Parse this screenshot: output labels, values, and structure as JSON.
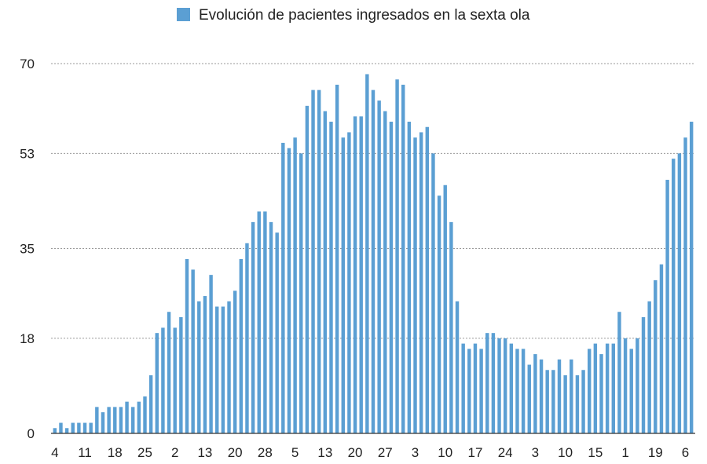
{
  "chart_data": {
    "type": "bar",
    "title": "",
    "xlabel": "",
    "ylabel": "",
    "ylim": [
      0,
      70
    ],
    "y_ticks": [
      0,
      18,
      35,
      53,
      70
    ],
    "grid": true,
    "legend_position": "top-center",
    "color": "#5b9fd3",
    "series": [
      {
        "name": "Evolución de pacientes ingresados en la sexta ola",
        "values": [
          1,
          2,
          1,
          2,
          2,
          2,
          2,
          5,
          4,
          5,
          5,
          5,
          6,
          5,
          6,
          7,
          11,
          19,
          20,
          23,
          20,
          22,
          33,
          31,
          25,
          26,
          30,
          24,
          24,
          25,
          27,
          33,
          36,
          40,
          42,
          42,
          40,
          38,
          55,
          54,
          56,
          53,
          62,
          65,
          65,
          61,
          59,
          66,
          56,
          57,
          60,
          60,
          68,
          65,
          63,
          61,
          59,
          67,
          66,
          59,
          56,
          57,
          58,
          53,
          45,
          47,
          40,
          25,
          17,
          16,
          17,
          16,
          19,
          19,
          18,
          18,
          17,
          16,
          16,
          13,
          15,
          14,
          12,
          12,
          14,
          11,
          14,
          11,
          12,
          16,
          17,
          15,
          17,
          17,
          23,
          18,
          16,
          18,
          22,
          25,
          29,
          32,
          48,
          52,
          53,
          56,
          59
        ]
      }
    ],
    "x_tick_labels": [
      {
        "index": 0,
        "label": "4"
      },
      {
        "index": 5,
        "label": "11"
      },
      {
        "index": 10,
        "label": "18"
      },
      {
        "index": 15,
        "label": "25"
      },
      {
        "index": 20,
        "label": "2"
      },
      {
        "index": 25,
        "label": "13"
      },
      {
        "index": 30,
        "label": "20"
      },
      {
        "index": 35,
        "label": "28"
      },
      {
        "index": 40,
        "label": "5"
      },
      {
        "index": 45,
        "label": "13"
      },
      {
        "index": 50,
        "label": "20"
      },
      {
        "index": 55,
        "label": "27"
      },
      {
        "index": 60,
        "label": "3"
      },
      {
        "index": 65,
        "label": "10"
      },
      {
        "index": 70,
        "label": "17"
      },
      {
        "index": 75,
        "label": "24"
      },
      {
        "index": 80,
        "label": "3"
      },
      {
        "index": 85,
        "label": "10"
      },
      {
        "index": 90,
        "label": "15"
      },
      {
        "index": 95,
        "label": "1"
      },
      {
        "index": 100,
        "label": "19"
      },
      {
        "index": 105,
        "label": "6"
      }
    ]
  }
}
